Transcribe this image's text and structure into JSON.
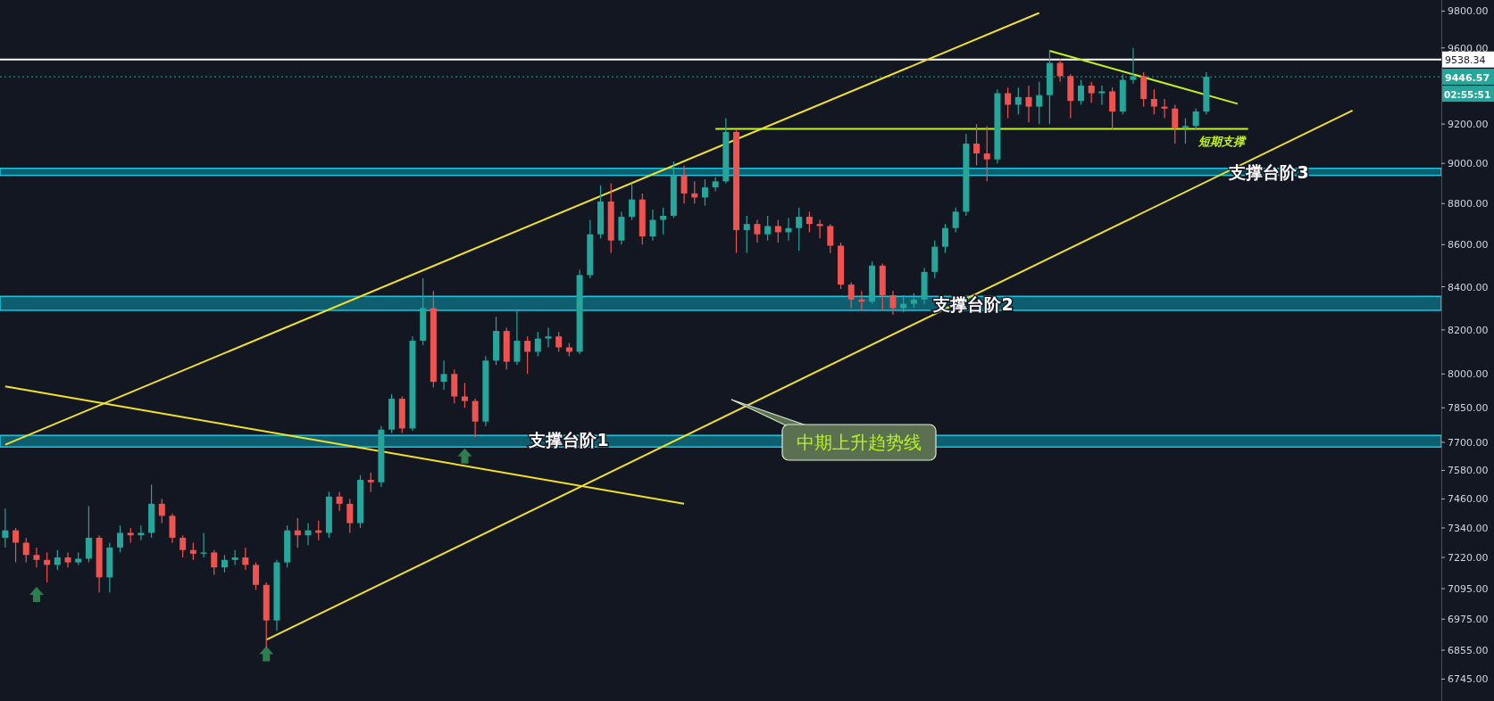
{
  "chart_data": {
    "type": "candlestick",
    "log": true,
    "ylim": [
      6663,
      9861
    ],
    "yticks": [
      {
        "value": 9800,
        "label": "9800.00"
      },
      {
        "value": 9600,
        "label": "9600.00"
      },
      {
        "value": 9200,
        "label": "9200.00"
      },
      {
        "value": 9000,
        "label": "9000.00"
      },
      {
        "value": 8800,
        "label": "8800.00"
      },
      {
        "value": 8600,
        "label": "8600.00"
      },
      {
        "value": 8400,
        "label": "8400.00"
      },
      {
        "value": 8200,
        "label": "8200.00"
      },
      {
        "value": 8000,
        "label": "8000.00"
      },
      {
        "value": 7850,
        "label": "7850.00"
      },
      {
        "value": 7700,
        "label": "7700.00"
      },
      {
        "value": 7580,
        "label": "7580.00"
      },
      {
        "value": 7460,
        "label": "7460.00"
      },
      {
        "value": 7340,
        "label": "7340.00"
      },
      {
        "value": 7220,
        "label": "7220.00"
      },
      {
        "value": 7095,
        "label": "7095.00"
      },
      {
        "value": 6975,
        "label": "6975.00"
      },
      {
        "value": 6855,
        "label": "6855.00"
      },
      {
        "value": 6745,
        "label": "6745.00"
      }
    ],
    "tick_labels": "y",
    "categories": [
      null,
      null,
      null,
      null,
      null,
      null,
      null,
      null,
      null,
      null,
      null,
      null,
      null,
      null,
      null,
      null,
      null,
      null,
      null,
      null,
      null,
      null,
      null,
      null,
      null,
      null,
      null,
      null,
      null,
      null,
      null,
      null,
      null,
      null,
      null,
      null,
      null,
      null,
      null,
      null,
      null,
      null,
      null,
      null,
      null,
      null,
      null,
      null,
      null,
      null,
      null,
      null,
      null,
      null,
      null,
      null,
      null,
      null,
      null,
      null,
      null,
      null,
      null,
      null,
      null,
      null,
      null,
      null,
      null,
      null,
      null,
      null,
      null,
      null,
      null,
      null,
      null,
      null,
      null,
      null,
      null,
      null,
      null,
      null,
      null,
      null,
      null,
      null,
      null,
      null,
      null,
      null,
      null,
      null,
      null,
      null,
      null,
      null,
      null,
      null,
      null,
      null,
      null,
      null,
      null,
      null,
      null,
      null,
      null,
      null,
      null,
      null,
      null,
      null,
      null,
      null,
      null,
      null,
      null,
      null,
      null,
      null,
      null,
      null,
      null,
      null,
      null,
      null,
      null,
      null,
      null,
      null,
      null,
      null,
      null,
      null,
      null,
      null
    ],
    "ohlc": [
      [
        7300,
        7420,
        7260,
        7330
      ],
      [
        7330,
        7340,
        7200,
        7280
      ],
      [
        7280,
        7300,
        7200,
        7230
      ],
      [
        7230,
        7260,
        7180,
        7210
      ],
      [
        7210,
        7240,
        7120,
        7190
      ],
      [
        7190,
        7250,
        7170,
        7220
      ],
      [
        7220,
        7240,
        7180,
        7200
      ],
      [
        7200,
        7240,
        7190,
        7215
      ],
      [
        7215,
        7430,
        7200,
        7300
      ],
      [
        7300,
        7310,
        7080,
        7140
      ],
      [
        7140,
        7280,
        7080,
        7260
      ],
      [
        7260,
        7350,
        7240,
        7320
      ],
      [
        7320,
        7340,
        7280,
        7310
      ],
      [
        7310,
        7350,
        7290,
        7320
      ],
      [
        7320,
        7520,
        7300,
        7440
      ],
      [
        7440,
        7460,
        7360,
        7390
      ],
      [
        7390,
        7400,
        7280,
        7300
      ],
      [
        7300,
        7310,
        7220,
        7250
      ],
      [
        7250,
        7280,
        7210,
        7235
      ],
      [
        7235,
        7320,
        7220,
        7240
      ],
      [
        7240,
        7250,
        7150,
        7180
      ],
      [
        7180,
        7230,
        7160,
        7210
      ],
      [
        7210,
        7250,
        7190,
        7220
      ],
      [
        7220,
        7260,
        7170,
        7190
      ],
      [
        7190,
        7200,
        7090,
        7110
      ],
      [
        7110,
        7120,
        6865,
        6970
      ],
      [
        6970,
        7210,
        6930,
        7200
      ],
      [
        7200,
        7350,
        7180,
        7330
      ],
      [
        7330,
        7380,
        7260,
        7310
      ],
      [
        7310,
        7360,
        7270,
        7330
      ],
      [
        7330,
        7370,
        7290,
        7320
      ],
      [
        7320,
        7490,
        7300,
        7470
      ],
      [
        7470,
        7490,
        7410,
        7440
      ],
      [
        7440,
        7460,
        7320,
        7360
      ],
      [
        7360,
        7560,
        7340,
        7540
      ],
      [
        7540,
        7570,
        7490,
        7530
      ],
      [
        7530,
        7770,
        7510,
        7755
      ],
      [
        7755,
        7910,
        7740,
        7890
      ],
      [
        7890,
        7900,
        7740,
        7760
      ],
      [
        7760,
        8170,
        7750,
        8150
      ],
      [
        8150,
        8440,
        8130,
        8300
      ],
      [
        8300,
        8380,
        7940,
        7965
      ],
      [
        7965,
        8060,
        7930,
        8000
      ],
      [
        8000,
        8020,
        7870,
        7900
      ],
      [
        7900,
        7960,
        7850,
        7880
      ],
      [
        7880,
        7890,
        7720,
        7790
      ],
      [
        7790,
        8080,
        7770,
        8060
      ],
      [
        8060,
        8260,
        8040,
        8195
      ],
      [
        8195,
        8210,
        8020,
        8055
      ],
      [
        8055,
        8290,
        8040,
        8150
      ],
      [
        8150,
        8170,
        8000,
        8100
      ],
      [
        8100,
        8190,
        8080,
        8160
      ],
      [
        8160,
        8210,
        8120,
        8170
      ],
      [
        8170,
        8190,
        8100,
        8120
      ],
      [
        8120,
        8140,
        8080,
        8100
      ],
      [
        8100,
        8480,
        8090,
        8455
      ],
      [
        8455,
        8720,
        8440,
        8650
      ],
      [
        8650,
        8890,
        8630,
        8810
      ],
      [
        8810,
        8900,
        8560,
        8620
      ],
      [
        8620,
        8760,
        8600,
        8735
      ],
      [
        8735,
        8900,
        8720,
        8820
      ],
      [
        8820,
        8850,
        8600,
        8640
      ],
      [
        8640,
        8770,
        8620,
        8720
      ],
      [
        8720,
        8780,
        8650,
        8740
      ],
      [
        8740,
        9010,
        8730,
        8940
      ],
      [
        8940,
        8990,
        8800,
        8850
      ],
      [
        8850,
        8910,
        8800,
        8830
      ],
      [
        8830,
        8920,
        8790,
        8880
      ],
      [
        8880,
        8930,
        8860,
        8910
      ],
      [
        8910,
        9230,
        8900,
        9160
      ],
      [
        9160,
        9170,
        8560,
        8670
      ],
      [
        8670,
        8740,
        8560,
        8700
      ],
      [
        8700,
        8720,
        8610,
        8650
      ],
      [
        8650,
        8740,
        8620,
        8690
      ],
      [
        8690,
        8720,
        8610,
        8660
      ],
      [
        8660,
        8730,
        8620,
        8680
      ],
      [
        8680,
        8780,
        8570,
        8735
      ],
      [
        8735,
        8760,
        8660,
        8700
      ],
      [
        8700,
        8720,
        8630,
        8690
      ],
      [
        8690,
        8700,
        8560,
        8595
      ],
      [
        8595,
        8610,
        8390,
        8410
      ],
      [
        8410,
        8420,
        8300,
        8340
      ],
      [
        8340,
        8380,
        8290,
        8330
      ],
      [
        8330,
        8520,
        8320,
        8500
      ],
      [
        8500,
        8510,
        8290,
        8360
      ],
      [
        8360,
        8380,
        8270,
        8300
      ],
      [
        8300,
        8360,
        8280,
        8320
      ],
      [
        8320,
        8370,
        8300,
        8340
      ],
      [
        8340,
        8490,
        8320,
        8470
      ],
      [
        8470,
        8620,
        8440,
        8590
      ],
      [
        8590,
        8700,
        8560,
        8680
      ],
      [
        8680,
        8780,
        8660,
        8760
      ],
      [
        8760,
        9150,
        8740,
        9100
      ],
      [
        9100,
        9200,
        8990,
        9050
      ],
      [
        9050,
        9190,
        8910,
        9020
      ],
      [
        9020,
        9380,
        9000,
        9360
      ],
      [
        9360,
        9390,
        9230,
        9300
      ],
      [
        9300,
        9390,
        9250,
        9340
      ],
      [
        9340,
        9400,
        9210,
        9290
      ],
      [
        9290,
        9420,
        9200,
        9350
      ],
      [
        9350,
        9590,
        9200,
        9520
      ],
      [
        9520,
        9540,
        9420,
        9450
      ],
      [
        9450,
        9460,
        9230,
        9320
      ],
      [
        9320,
        9430,
        9300,
        9400
      ],
      [
        9400,
        9420,
        9310,
        9360
      ],
      [
        9360,
        9400,
        9300,
        9370
      ],
      [
        9370,
        9390,
        9170,
        9265
      ],
      [
        9265,
        9460,
        9250,
        9430
      ],
      [
        9430,
        9600,
        9410,
        9450
      ],
      [
        9450,
        9470,
        9290,
        9330
      ],
      [
        9330,
        9380,
        9250,
        9290
      ],
      [
        9290,
        9330,
        9230,
        9280
      ],
      [
        9280,
        9300,
        9100,
        9180
      ],
      [
        9180,
        9230,
        9100,
        9190
      ],
      [
        9190,
        9280,
        9170,
        9265
      ],
      [
        9265,
        9470,
        9250,
        9446.57
      ],
      null,
      null,
      null,
      null,
      null,
      null,
      null,
      null,
      null,
      null,
      null,
      null,
      null,
      null,
      null,
      null,
      null,
      null,
      null,
      null,
      null,
      null
    ],
    "colors": [
      "#26a69a",
      "#ef5350",
      "#ef5350",
      "#ef5350",
      "#ef5350",
      "#26a69a",
      "#ef5350",
      "#26a69a",
      "#26a69a",
      "#ef5350",
      "#26a69a",
      "#26a69a",
      "#ef5350",
      "#26a69a",
      "#26a69a",
      "#ef5350",
      "#ef5350",
      "#ef5350",
      "#ef5350",
      "#26a69a",
      "#ef5350",
      "#26a69a",
      "#26a69a",
      "#ef5350",
      "#ef5350",
      "#ef5350",
      "#26a69a",
      "#26a69a",
      "#ef5350",
      "#26a69a",
      "#ef5350",
      "#26a69a",
      "#ef5350",
      "#ef5350",
      "#26a69a",
      "#ef5350",
      "#26a69a",
      "#26a69a",
      "#ef5350",
      "#26a69a",
      "#26a69a",
      "#ef5350",
      "#26a69a",
      "#ef5350",
      "#ef5350",
      "#ef5350",
      "#26a69a",
      "#26a69a",
      "#ef5350",
      "#26a69a",
      "#ef5350",
      "#26a69a",
      "#26a69a",
      "#ef5350",
      "#ef5350",
      "#26a69a",
      "#26a69a",
      "#26a69a",
      "#ef5350",
      "#26a69a",
      "#26a69a",
      "#ef5350",
      "#26a69a",
      "#26a69a",
      "#26a69a",
      "#ef5350",
      "#ef5350",
      "#26a69a",
      "#26a69a",
      "#26a69a",
      "#ef5350",
      "#26a69a",
      "#ef5350",
      "#26a69a",
      "#ef5350",
      "#26a69a",
      "#26a69a",
      "#ef5350",
      "#ef5350",
      "#ef5350",
      "#ef5350",
      "#ef5350",
      "#ef5350",
      "#26a69a",
      "#ef5350",
      "#ef5350",
      "#26a69a",
      "#26a69a",
      "#26a69a",
      "#26a69a",
      "#26a69a",
      "#26a69a",
      "#26a69a",
      "#ef5350",
      "#ef5350",
      "#26a69a",
      "#ef5350",
      "#26a69a",
      "#ef5350",
      "#26a69a",
      "#26a69a",
      "#ef5350",
      "#ef5350",
      "#26a69a",
      "#ef5350",
      "#26a69a",
      "#ef5350",
      "#26a69a",
      "#26a69a",
      "#ef5350",
      "#ef5350",
      "#ef5350",
      "#ef5350",
      "#26a69a",
      "#26a69a",
      "#26a69a",
      null,
      null,
      null,
      null,
      null,
      null,
      null,
      null,
      null,
      null,
      null,
      null,
      null,
      null,
      null,
      null,
      null,
      null,
      null,
      null,
      null,
      null
    ],
    "series": [
      {
        "type": "line",
        "color": "#f2e227",
        "values": [
          7690,
          null,
          null,
          null,
          null,
          null,
          null,
          null,
          null,
          null,
          null,
          null,
          null,
          null,
          null,
          null,
          null,
          null,
          null,
          null,
          null,
          null,
          null,
          null,
          null,
          null,
          null,
          null,
          null,
          null,
          null,
          null,
          null,
          null,
          null,
          null,
          null,
          null,
          null,
          null,
          null,
          null,
          null,
          null,
          null,
          null,
          null,
          null,
          null,
          null,
          null,
          null,
          null,
          null,
          null,
          null,
          null,
          null,
          null,
          null,
          null,
          null,
          null,
          null,
          null,
          null,
          null,
          null,
          null,
          null,
          null,
          null,
          null,
          null,
          null,
          null,
          null,
          null,
          null,
          null,
          null,
          null,
          null,
          null,
          null,
          null,
          null,
          null,
          null,
          null,
          null,
          null,
          null,
          null,
          null,
          null,
          null,
          null,
          null,
          9790,
          null,
          null,
          null,
          null,
          null,
          null,
          null,
          null,
          null,
          null,
          null,
          null,
          null,
          null,
          null,
          null,
          null,
          null,
          null,
          null,
          null,
          null,
          null,
          null,
          null,
          null,
          null,
          null,
          null,
          null,
          null,
          null,
          null,
          null,
          null,
          null,
          null,
          null
        ]
      },
      {
        "type": "line",
        "color": "#f2e227",
        "values": [
          null,
          null,
          null,
          null,
          null,
          null,
          null,
          null,
          null,
          null,
          null,
          null,
          null,
          null,
          null,
          null,
          null,
          null,
          null,
          null,
          null,
          null,
          null,
          null,
          null,
          6895,
          null,
          null,
          null,
          null,
          null,
          null,
          null,
          null,
          null,
          null,
          null,
          null,
          null,
          null,
          null,
          null,
          null,
          null,
          null,
          null,
          null,
          null,
          null,
          null,
          null,
          null,
          null,
          null,
          null,
          null,
          null,
          null,
          null,
          null,
          null,
          null,
          null,
          null,
          null,
          null,
          null,
          null,
          null,
          null,
          null,
          null,
          null,
          null,
          null,
          null,
          null,
          null,
          null,
          null,
          null,
          null,
          null,
          null,
          null,
          null,
          null,
          null,
          null,
          null,
          null,
          null,
          null,
          null,
          null,
          null,
          null,
          null,
          null,
          null,
          null,
          null,
          null,
          null,
          null,
          null,
          null,
          null,
          null,
          null,
          null,
          null,
          null,
          null,
          null,
          null,
          null,
          null,
          null,
          null,
          null,
          null,
          null,
          null,
          null,
          null,
          null,
          null,
          null,
          9270,
          null,
          null,
          null,
          null,
          null,
          null,
          null,
          null
        ]
      },
      {
        "type": "line",
        "color": "#f2e227",
        "values": [
          7945,
          null,
          null,
          null,
          null,
          null,
          null,
          null,
          null,
          null,
          null,
          null,
          null,
          null,
          null,
          null,
          null,
          null,
          null,
          null,
          null,
          null,
          null,
          null,
          null,
          null,
          null,
          null,
          null,
          null,
          null,
          null,
          null,
          null,
          null,
          null,
          null,
          null,
          null,
          null,
          null,
          null,
          null,
          null,
          null,
          null,
          null,
          null,
          null,
          null,
          null,
          null,
          null,
          null,
          null,
          null,
          null,
          null,
          null,
          null,
          null,
          null,
          null,
          null,
          null,
          7440,
          null,
          null,
          null,
          null,
          null,
          null,
          null,
          null,
          null,
          null,
          null,
          null,
          null,
          null,
          null,
          null,
          null,
          null,
          null,
          null,
          null,
          null,
          null,
          null,
          null,
          null,
          null,
          null,
          null,
          null,
          null,
          null,
          null,
          null,
          null,
          null,
          null,
          null,
          null,
          null,
          null,
          null,
          null,
          null,
          null,
          null,
          null,
          null,
          null,
          null,
          null,
          null,
          null,
          null,
          null,
          null,
          null,
          null,
          null,
          null,
          null,
          null,
          null,
          null,
          null,
          null,
          null,
          null,
          null,
          null,
          null,
          null
        ]
      },
      {
        "type": "line",
        "color": "#c2f21f",
        "values": [
          null,
          null,
          null,
          null,
          null,
          null,
          null,
          null,
          null,
          null,
          null,
          null,
          null,
          null,
          null,
          null,
          null,
          null,
          null,
          null,
          null,
          null,
          null,
          null,
          null,
          null,
          null,
          null,
          null,
          null,
          null,
          null,
          null,
          null,
          null,
          null,
          null,
          null,
          null,
          null,
          null,
          null,
          null,
          null,
          null,
          null,
          null,
          null,
          null,
          null,
          null,
          null,
          null,
          null,
          null,
          null,
          null,
          null,
          null,
          null,
          null,
          null,
          null,
          null,
          null,
          null,
          null,
          null,
          null,
          null,
          null,
          null,
          null,
          null,
          null,
          null,
          null,
          null,
          null,
          null,
          null,
          null,
          null,
          null,
          null,
          null,
          null,
          null,
          null,
          null,
          null,
          null,
          null,
          null,
          null,
          null,
          null,
          null,
          null,
          null,
          9585,
          null,
          null,
          null,
          null,
          null,
          null,
          null,
          null,
          null,
          null,
          null,
          null,
          null,
          null,
          null,
          null,
          null,
          9305,
          null,
          null,
          null,
          null,
          null,
          null,
          null,
          null,
          null,
          null,
          null,
          null,
          null,
          null,
          null,
          null,
          null,
          null,
          null
        ]
      },
      {
        "type": "line",
        "name": "短期支撑",
        "color": "#c2f21f",
        "values": [
          null,
          null,
          null,
          null,
          null,
          null,
          null,
          null,
          null,
          null,
          null,
          null,
          null,
          null,
          null,
          null,
          null,
          null,
          null,
          null,
          null,
          null,
          null,
          null,
          null,
          null,
          null,
          null,
          null,
          null,
          null,
          null,
          null,
          null,
          null,
          null,
          null,
          null,
          null,
          null,
          null,
          null,
          null,
          null,
          null,
          null,
          null,
          null,
          null,
          null,
          null,
          null,
          null,
          null,
          null,
          null,
          null,
          null,
          null,
          null,
          null,
          null,
          null,
          null,
          null,
          null,
          null,
          null,
          9175,
          null,
          null,
          null,
          null,
          null,
          null,
          null,
          null,
          null,
          null,
          null,
          null,
          null,
          null,
          null,
          null,
          null,
          null,
          null,
          null,
          null,
          null,
          null,
          null,
          null,
          null,
          null,
          null,
          null,
          null,
          null,
          null,
          null,
          null,
          null,
          null,
          null,
          null,
          null,
          null,
          null,
          null,
          null,
          null,
          null,
          null,
          null,
          null,
          null,
          null,
          9175,
          null,
          null,
          null,
          null,
          null,
          null,
          null,
          null,
          null,
          null,
          null,
          null,
          null,
          null,
          null,
          null,
          null,
          null
        ]
      },
      {
        "type": "scatter",
        "marker": "triangle",
        "color": "#2e7d4f",
        "values": [
          null,
          null,
          null,
          7070,
          null,
          null,
          null,
          null,
          null,
          null,
          null,
          null,
          null,
          null,
          null,
          null,
          null,
          null,
          null,
          null,
          null,
          null,
          null,
          null,
          null,
          6840,
          null,
          null,
          null,
          null,
          null,
          null,
          null,
          null,
          null,
          null,
          null,
          null,
          null,
          null,
          null,
          null,
          null,
          null,
          7640,
          null,
          null,
          null,
          null,
          null,
          null,
          null,
          null,
          null,
          null,
          null,
          null,
          null,
          null,
          null,
          null,
          null,
          null,
          null,
          null,
          null,
          null,
          null,
          null,
          null,
          null,
          null,
          null,
          null,
          null,
          null,
          null,
          null,
          null,
          null,
          null,
          null,
          null,
          null,
          null,
          null,
          null,
          null,
          null,
          null,
          null,
          null,
          null,
          null,
          null,
          null,
          null,
          null,
          null,
          null,
          null,
          null,
          null,
          null,
          null,
          null,
          null,
          null,
          null,
          null,
          null,
          null,
          null,
          null,
          null,
          null,
          null,
          null,
          null,
          null,
          null,
          null,
          null,
          null,
          null,
          null,
          null,
          null,
          null,
          null,
          null,
          null,
          null,
          null,
          null,
          null,
          null,
          null
        ]
      }
    ],
    "bands": [
      {
        "axis": "y",
        "from": 7680,
        "to": 7730,
        "color": "#0e6b7c"
      },
      {
        "axis": "y",
        "from": 8290,
        "to": 8355,
        "color": "#0e6b7c"
      },
      {
        "axis": "y",
        "from": 8940,
        "to": 8975,
        "color": "#0e6b7c"
      }
    ],
    "ref_lines": [
      {
        "axis": "y",
        "value": 9538.34,
        "label": "9538.34",
        "color": "#ffffff",
        "line_style": "solid"
      },
      {
        "axis": "y",
        "value": 9446.57,
        "label": "9446.57",
        "color": "#26a69a",
        "line_style": "dotted"
      }
    ],
    "annotations": [
      "支撑台阶1",
      "支撑台阶2",
      "支撑台阶3",
      "中期上升趋势线",
      "02:55:51"
    ]
  }
}
